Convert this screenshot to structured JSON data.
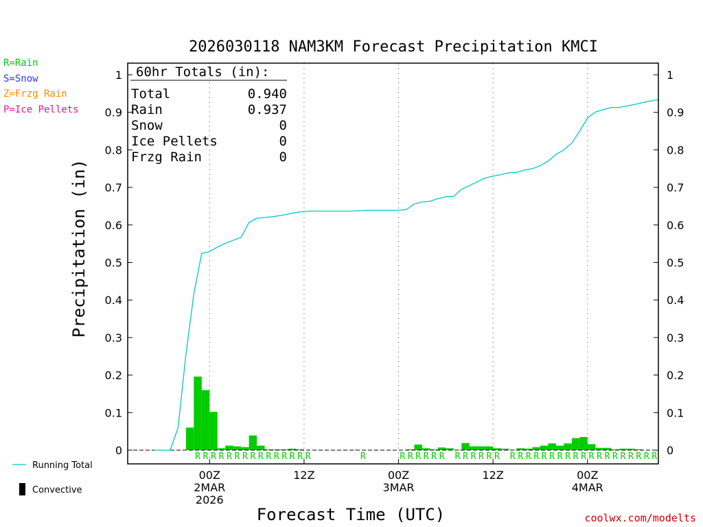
{
  "colors": {
    "rain": "#00cc00",
    "snow": "#3333ff",
    "freezing_rain": "#ff8800",
    "ice_pellets": "#ee1199",
    "running_total": "#00c8c8",
    "axis": "#000000",
    "gridline": "#999999",
    "credit": "#cc0000"
  },
  "legend": {
    "rain": "R=Rain",
    "snow": "S=Snow",
    "freezing_rain": "Z=Frzg Rain",
    "ice_pellets": "P=Ice Pellets",
    "running_total": "Running Total",
    "convective": "Convective"
  },
  "totals_box": {
    "header": "60hr Totals (in):",
    "rows": [
      {
        "label": "Total",
        "value": "0.940"
      },
      {
        "label": "Rain",
        "value": "0.937"
      },
      {
        "label": "Snow",
        "value": "0"
      },
      {
        "label": "Ice Pellets",
        "value": "0"
      },
      {
        "label": "Frzg Rain",
        "value": "0"
      }
    ]
  },
  "credit": "coolwx.com/modelts",
  "chart_data": {
    "type": "bar",
    "title": "2026030118 NAM3KM Forecast Precipitation KMCI",
    "xlabel": "Forecast Time (UTC)",
    "ylabel": "Precipitation (in)",
    "ylim": [
      0,
      1
    ],
    "yticks": [
      "0",
      "0.1",
      "0.2",
      "0.3",
      "0.4",
      "0.5",
      "0.6",
      "0.7",
      "0.8",
      "0.9",
      "1"
    ],
    "xlim_hours": [
      -4.4,
      63
    ],
    "xticks": [
      {
        "hour": 6,
        "lines": [
          "00Z",
          "2MAR",
          "2026"
        ]
      },
      {
        "hour": 18,
        "lines": [
          "12Z"
        ]
      },
      {
        "hour": 30,
        "lines": [
          "00Z",
          "3MAR"
        ]
      },
      {
        "hour": 42,
        "lines": [
          "12Z"
        ]
      },
      {
        "hour": 54,
        "lines": [
          "00Z",
          "4MAR"
        ]
      }
    ],
    "gridline_hours": [
      6,
      18,
      30,
      42,
      54
    ],
    "series": [
      {
        "name": "Rain (hourly)",
        "kind": "bar",
        "hours": [
          4,
          5,
          6,
          7,
          8,
          9,
          10,
          11,
          12,
          13,
          14,
          15,
          16,
          17,
          18,
          19,
          20,
          21,
          22,
          23,
          24,
          25,
          26,
          27,
          28,
          29,
          30,
          31,
          32,
          33,
          34,
          35,
          36,
          37,
          38,
          39,
          40,
          41,
          42,
          43,
          44,
          45,
          46,
          47,
          48,
          49,
          50,
          51,
          52,
          53,
          54,
          55,
          56,
          57,
          58,
          59,
          60,
          61,
          62,
          63
        ],
        "values": [
          0.06,
          0.196,
          0.16,
          0.102,
          0.005,
          0.012,
          0.01,
          0.008,
          0.039,
          0.012,
          0.002,
          0.002,
          0.002,
          0.004,
          0.002,
          0,
          0,
          0,
          0,
          0,
          0,
          0.001,
          0,
          0,
          0,
          0,
          0,
          0,
          0.002,
          0.015,
          0.005,
          0.002,
          0.007,
          0.005,
          0.001,
          0.019,
          0.01,
          0.01,
          0.01,
          0.005,
          0.004,
          0.001,
          0.005,
          0.004,
          0.008,
          0.012,
          0.018,
          0.012,
          0.018,
          0.032,
          0.035,
          0.016,
          0.006,
          0.006,
          0.002,
          0.004,
          0.004,
          0.002,
          0,
          0
        ]
      },
      {
        "name": "Running Total",
        "kind": "line",
        "hours": [
          -1,
          1,
          2,
          3,
          4,
          5,
          6,
          7,
          8,
          9,
          10,
          11,
          12,
          13,
          14,
          15,
          16,
          17,
          18,
          19,
          20,
          21,
          22,
          23,
          24,
          25,
          26,
          27,
          28,
          29,
          30,
          31,
          32,
          33,
          34,
          35,
          36,
          37,
          38,
          39,
          40,
          41,
          42,
          43,
          44,
          45,
          46,
          47,
          48,
          49,
          50,
          51,
          52,
          53,
          54,
          55,
          56,
          57,
          58,
          59,
          60,
          61,
          62,
          63
        ],
        "values": [
          0,
          0,
          0.06,
          0.256,
          0.416,
          0.524,
          0.529,
          0.541,
          0.551,
          0.559,
          0.567,
          0.606,
          0.618,
          0.62,
          0.622,
          0.625,
          0.629,
          0.633,
          0.636,
          0.637,
          0.637,
          0.637,
          0.637,
          0.637,
          0.637,
          0.638,
          0.639,
          0.639,
          0.639,
          0.639,
          0.639,
          0.641,
          0.656,
          0.661,
          0.663,
          0.67,
          0.675,
          0.676,
          0.695,
          0.705,
          0.715,
          0.725,
          0.73,
          0.734,
          0.739,
          0.74,
          0.746,
          0.75,
          0.758,
          0.77,
          0.788,
          0.8,
          0.818,
          0.85,
          0.885,
          0.901,
          0.907,
          0.913,
          0.913,
          0.917,
          0.921,
          0.926,
          0.93,
          0.934
        ]
      }
    ],
    "ptype_hours": [
      5,
      6,
      7,
      8,
      9,
      10,
      11,
      12,
      13,
      14,
      15,
      16,
      17,
      18,
      19,
      26,
      31,
      32,
      33,
      34,
      35,
      36,
      38,
      39,
      40,
      41,
      42,
      43,
      45,
      46,
      47,
      48,
      49,
      50,
      51,
      52,
      53,
      54,
      55,
      56,
      57,
      58,
      59,
      60,
      61,
      62,
      63
    ],
    "ptype_label": "R"
  }
}
